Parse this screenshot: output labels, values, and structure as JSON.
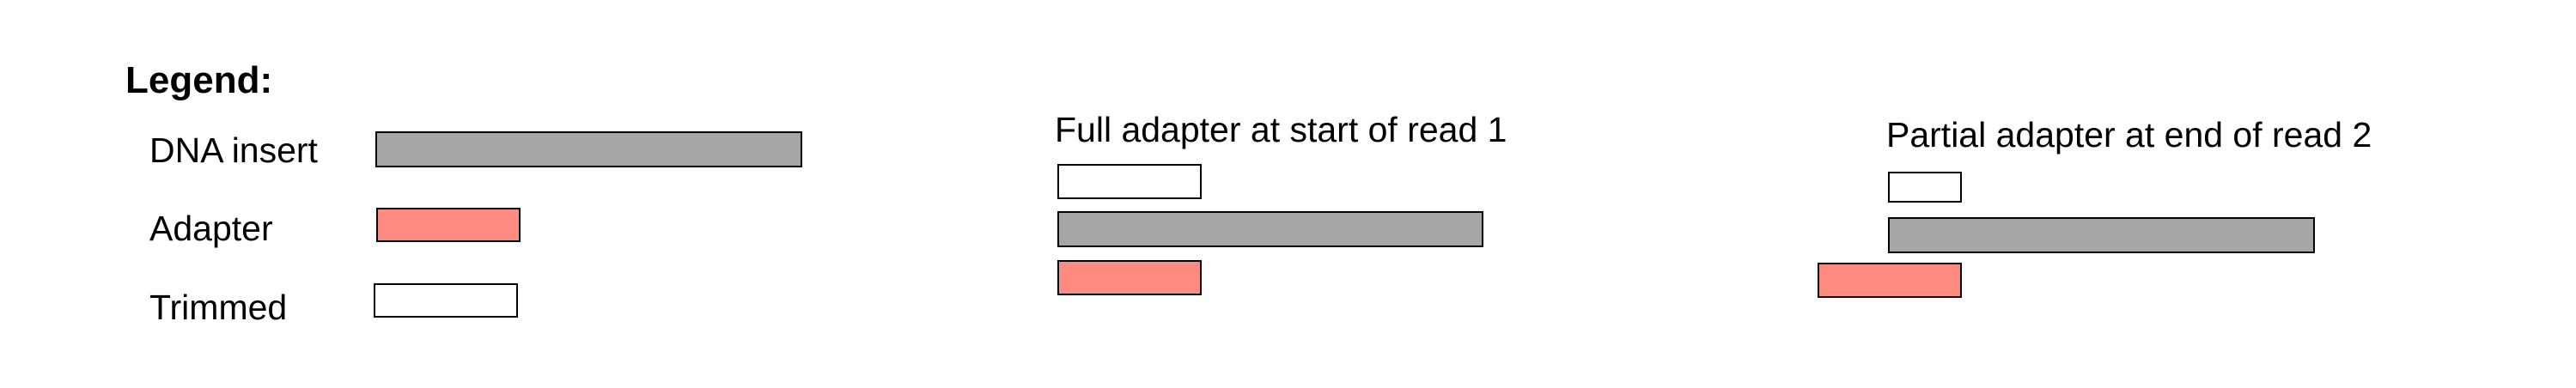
{
  "legend": {
    "title": "Legend:",
    "items": [
      {
        "label": "DNA insert",
        "kind": "insert"
      },
      {
        "label": "Adapter",
        "kind": "adapter"
      },
      {
        "label": "Trimmed",
        "kind": "trimmed"
      }
    ]
  },
  "panels": [
    {
      "caption": "Full adapter at start of read 1"
    },
    {
      "caption": "Partial adapter at end of read 2"
    }
  ],
  "colors": {
    "dna_insert": "#a6a6a6",
    "adapter": "#ff8a7f",
    "trimmed": "#ffffff",
    "outline": "#000000"
  }
}
